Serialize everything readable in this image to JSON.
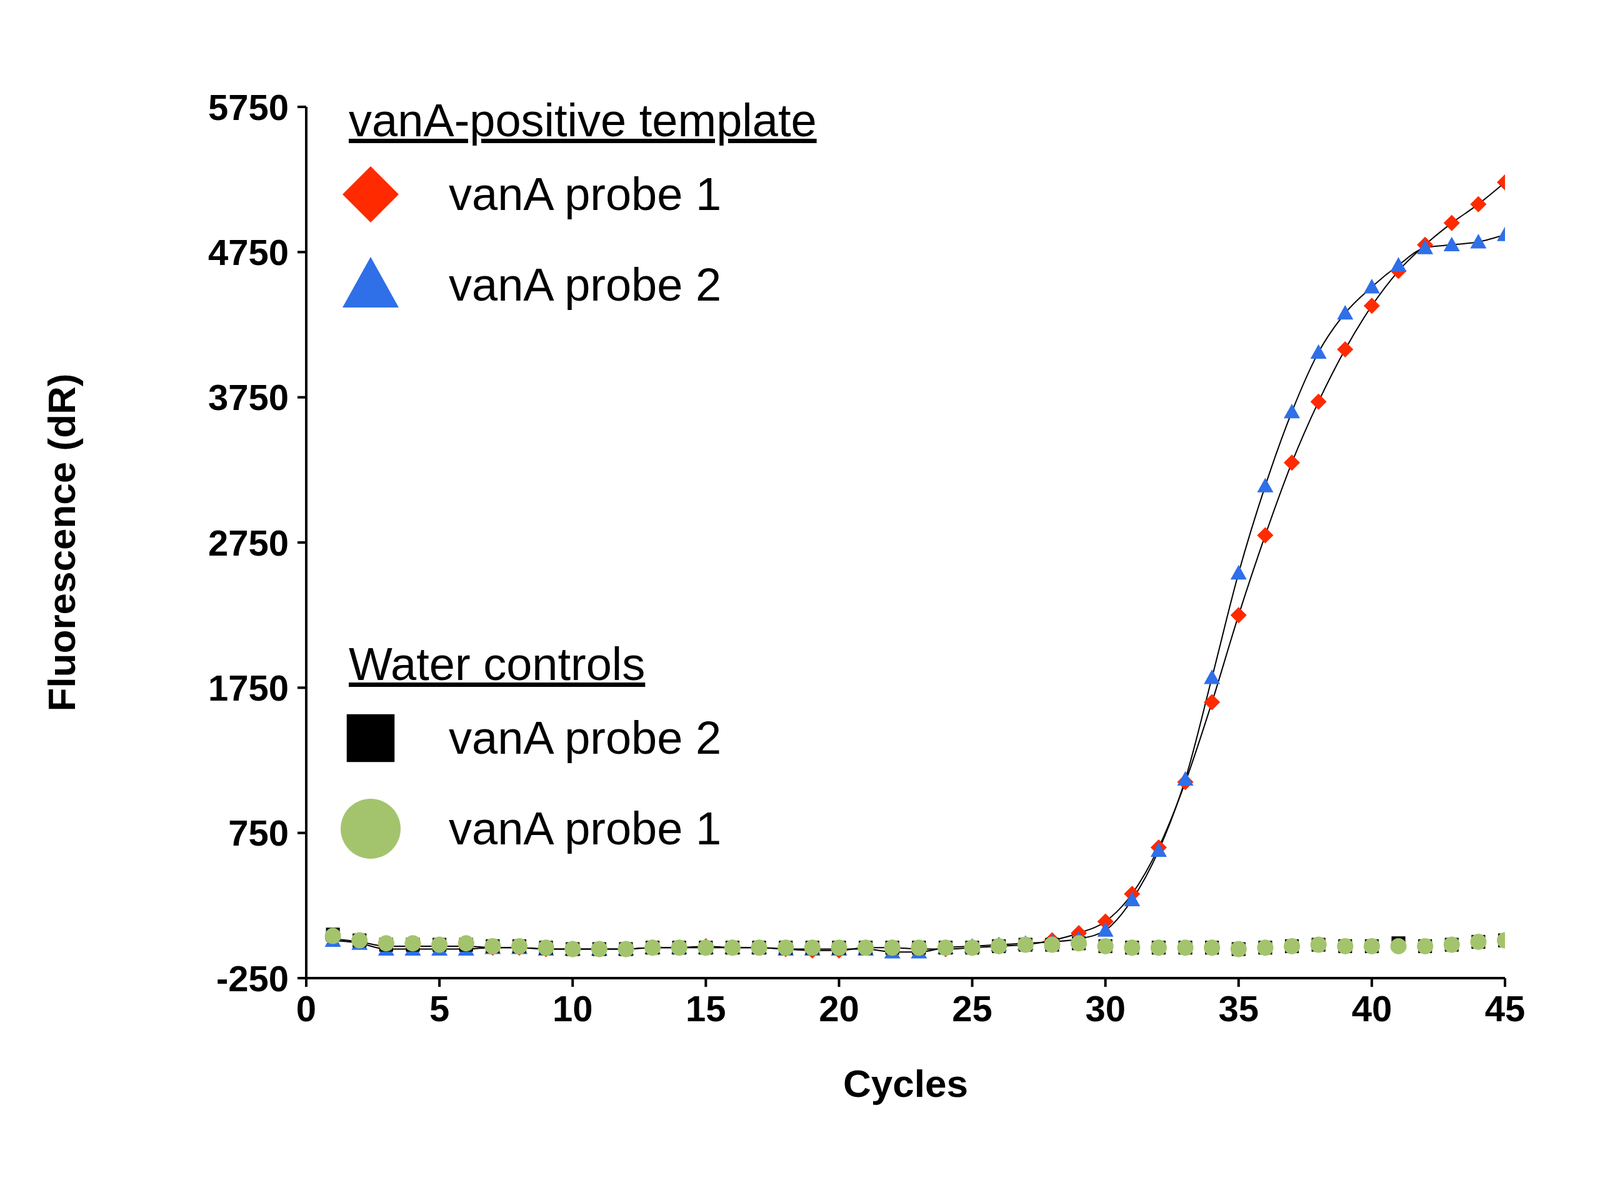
{
  "chart_data": {
    "type": "line",
    "x_label": "Cycles",
    "y_label": "Fluorescence (dR)",
    "x": [
      1,
      2,
      3,
      4,
      5,
      6,
      7,
      8,
      9,
      10,
      11,
      12,
      13,
      14,
      15,
      16,
      17,
      18,
      19,
      20,
      21,
      22,
      23,
      24,
      25,
      26,
      27,
      28,
      29,
      30,
      31,
      32,
      33,
      34,
      35,
      36,
      37,
      38,
      39,
      40,
      41,
      42,
      43,
      44,
      45
    ],
    "xlim": [
      0,
      45
    ],
    "xticks": [
      0,
      5,
      10,
      15,
      20,
      25,
      30,
      35,
      40,
      45
    ],
    "ylim": [
      -250,
      5750
    ],
    "yticks": [
      -250,
      750,
      1750,
      2750,
      3750,
      4750,
      5750
    ],
    "grid": false,
    "series": [
      {
        "name": "vanA probe 1",
        "group": "vanA-positive template",
        "color": "#ff2a00",
        "marker": "diamond",
        "line_style": "solid",
        "values": [
          20,
          0,
          -30,
          -30,
          -30,
          -30,
          -40,
          -40,
          -50,
          -50,
          -50,
          -50,
          -40,
          -40,
          -30,
          -40,
          -40,
          -50,
          -60,
          -60,
          -40,
          -40,
          -50,
          -50,
          -40,
          -30,
          -20,
          10,
          60,
          140,
          330,
          650,
          1100,
          1650,
          2250,
          2800,
          3300,
          3720,
          4080,
          4380,
          4620,
          4800,
          4950,
          5080,
          5230
        ]
      },
      {
        "name": "vanA probe 2",
        "group": "vanA-positive template",
        "color": "#2f6fe8",
        "marker": "triangle",
        "line_style": "solid",
        "values": [
          10,
          -10,
          -50,
          -50,
          -50,
          -50,
          -40,
          -40,
          -50,
          -50,
          -50,
          -50,
          -40,
          -40,
          -40,
          -40,
          -40,
          -50,
          -50,
          -50,
          -50,
          -70,
          -70,
          -40,
          -30,
          -20,
          -10,
          0,
          20,
          80,
          290,
          630,
          1120,
          1820,
          2540,
          3140,
          3650,
          4060,
          4330,
          4510,
          4660,
          4780,
          4800,
          4820,
          4870
        ]
      },
      {
        "name": "vanA probe 2",
        "group": "Water controls",
        "color": "#000000",
        "marker": "square",
        "line_style": "none",
        "values": [
          50,
          10,
          -20,
          -20,
          -20,
          -20,
          -30,
          -30,
          -40,
          -50,
          -50,
          -50,
          -40,
          -40,
          -40,
          -40,
          -40,
          -40,
          -40,
          -40,
          -40,
          -40,
          -40,
          -40,
          -40,
          -30,
          -20,
          -20,
          -10,
          -30,
          -40,
          -40,
          -40,
          -40,
          -50,
          -40,
          -30,
          -20,
          -30,
          -30,
          -10,
          -30,
          -20,
          0,
          10
        ]
      },
      {
        "name": "vanA probe 1",
        "group": "Water controls",
        "color": "#a3c46c",
        "marker": "circle",
        "line_style": "none",
        "values": [
          40,
          10,
          -10,
          -10,
          -20,
          -10,
          -30,
          -30,
          -40,
          -50,
          -50,
          -50,
          -40,
          -40,
          -40,
          -40,
          -40,
          -40,
          -40,
          -40,
          -40,
          -40,
          -40,
          -40,
          -40,
          -30,
          -20,
          -20,
          -10,
          -30,
          -40,
          -40,
          -40,
          -40,
          -50,
          -40,
          -30,
          -20,
          -30,
          -30,
          -30,
          -30,
          -20,
          0,
          10
        ]
      }
    ]
  }
}
